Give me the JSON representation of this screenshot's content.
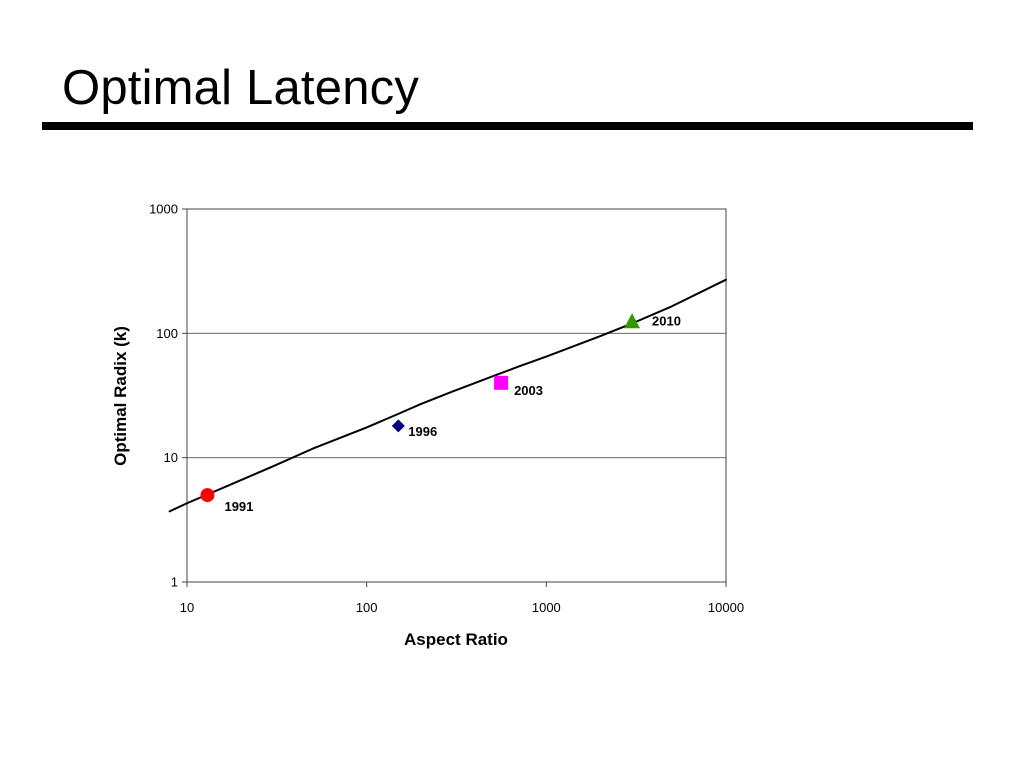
{
  "slide": {
    "title": "Optimal Latency"
  },
  "chart_data": {
    "type": "line",
    "xlabel": "Aspect Ratio",
    "ylabel": "Optimal Radix (k)",
    "xscale": "log",
    "yscale": "log",
    "xlim": [
      10,
      10000
    ],
    "ylim": [
      1,
      1000
    ],
    "xticks": [
      "10",
      "100",
      "1000",
      "10000"
    ],
    "yticks": [
      "1",
      "10",
      "100",
      "1000"
    ],
    "grid": "horizontal major gridlines",
    "legend": "none",
    "series": [
      {
        "type": "line",
        "color": "#000000",
        "x": [
          8,
          10,
          20,
          30,
          50,
          100,
          150,
          200,
          300,
          500,
          700,
          1000,
          2000,
          3000,
          5000,
          10000
        ],
        "y": [
          3.7,
          4.3,
          6.6,
          8.5,
          11.8,
          17.5,
          22.5,
          27,
          34,
          45,
          54,
          65,
          95,
          120,
          165,
          270
        ]
      }
    ],
    "points": [
      {
        "label": "1991",
        "x": 13,
        "y": 5,
        "marker": "circle",
        "color": "#ff0000"
      },
      {
        "label": "1996",
        "x": 150,
        "y": 18,
        "marker": "diamond",
        "color": "#000080"
      },
      {
        "label": "2003",
        "x": 560,
        "y": 40,
        "marker": "square",
        "color": "#ff00ff"
      },
      {
        "label": "2010",
        "x": 3000,
        "y": 125,
        "marker": "triangle",
        "color": "#339900"
      }
    ]
  }
}
